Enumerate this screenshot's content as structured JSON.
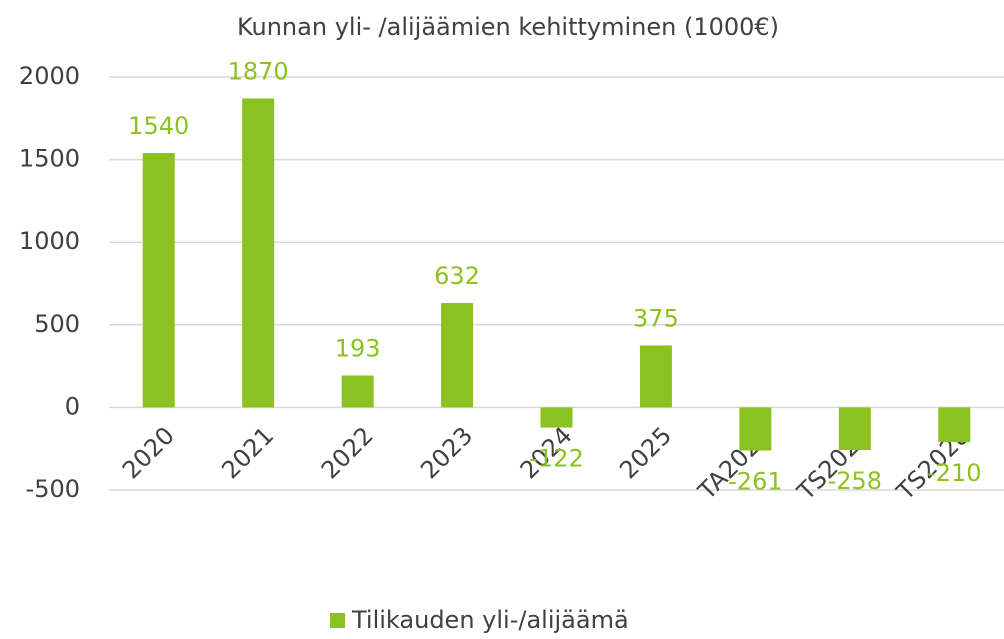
{
  "chart_data": {
    "type": "bar",
    "title": "Kunnan yli- /alijäämien kehittyminen (1000€)",
    "categories": [
      "2020",
      "2021",
      "2022",
      "2023",
      "2024",
      "2025",
      "TA2026",
      "TS2027",
      "TS2028"
    ],
    "series": [
      {
        "name": "Tilikauden yli-/alijäämä",
        "color": "#8cc21f",
        "values": [
          1540,
          1870,
          193,
          632,
          -122,
          375,
          -261,
          -258,
          -210
        ]
      }
    ],
    "ylim": [
      -500,
      2000
    ],
    "yticks": [
      -500,
      0,
      500,
      1000,
      1500,
      2000
    ],
    "grid": true,
    "legend": "bottom"
  }
}
